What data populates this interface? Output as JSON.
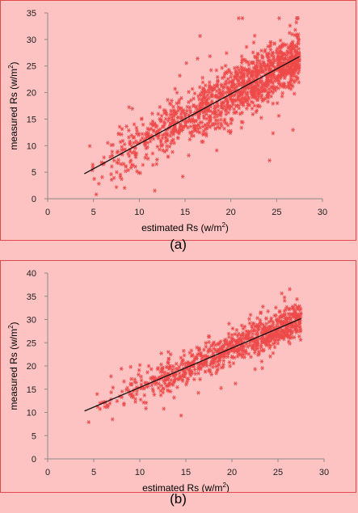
{
  "colors": {
    "background": "#fdc3c3",
    "border": "#e04a4a",
    "marker": "#ee4a4a",
    "fit_line": "#111111"
  },
  "chart_data": [
    {
      "type": "scatter",
      "caption": "(a)",
      "xlabel": "estimated Rs  (w/m",
      "xlabel_sup": "2",
      "xlabel_end": ")",
      "ylabel": "measured Rs  (w/m",
      "ylabel_sup": "2",
      "ylabel_end": ")",
      "xlim": [
        0,
        30
      ],
      "ylim": [
        0,
        35
      ],
      "xticks": [
        "0",
        "5",
        "10",
        "15",
        "20",
        "25",
        "30"
      ],
      "yticks": [
        "0",
        "5",
        "10",
        "15",
        "20",
        "25",
        "30",
        "35"
      ],
      "marker": "asterisk",
      "point_count": 1400,
      "x_range": [
        4,
        27.5
      ],
      "fit_line": [
        [
          4.0,
          4.7
        ],
        [
          27.5,
          26.8
        ]
      ],
      "scatter_spread": 2.6,
      "grid": false,
      "legend": "none"
    },
    {
      "type": "scatter",
      "caption": "(b)",
      "xlabel": "estimated Rs  (w/m",
      "xlabel_sup": "2",
      "xlabel_end": ")",
      "ylabel": "measured Rs  (w/m",
      "ylabel_sup": "2",
      "ylabel_end": ")",
      "xlim": [
        0,
        30
      ],
      "ylim": [
        0,
        40
      ],
      "xticks": [
        "0",
        "5",
        "10",
        "15",
        "20",
        "25",
        "30"
      ],
      "yticks": [
        "0",
        "5",
        "10",
        "15",
        "20",
        "25",
        "30",
        "35",
        "40"
      ],
      "marker": "asterisk",
      "point_count": 900,
      "x_range": [
        4,
        27.5
      ],
      "fit_line": [
        [
          4.0,
          10.3
        ],
        [
          27.5,
          30.2
        ]
      ],
      "scatter_spread": 1.9,
      "grid": false,
      "legend": "none"
    }
  ]
}
